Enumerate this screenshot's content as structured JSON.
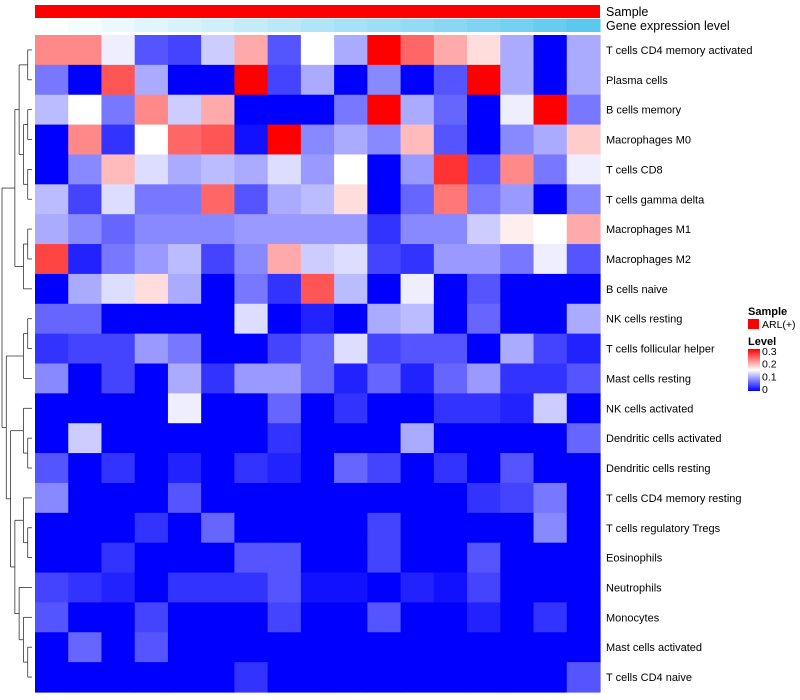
{
  "chart_data": {
    "type": "heatmap",
    "title": "",
    "annotations": [
      {
        "name": "Sample",
        "colors": "#ff0000"
      },
      {
        "name": "Gene expression level",
        "colors_scale": [
          "#ffffff",
          "#5bc8f0"
        ]
      }
    ],
    "rows": [
      "T cells CD4 memory activated",
      "Plasma cells",
      "B cells memory",
      "Macrophages M0",
      "T cells CD8",
      "T cells gamma delta",
      "Macrophages M1",
      "Macrophages M2",
      "B cells naive",
      "NK cells resting",
      "T cells follicular helper",
      "Mast cells resting",
      "NK cells activated",
      "Dendritic cells activated",
      "Dendritic cells resting",
      "T cells CD4 memory resting",
      "T cells regulatory  Tregs",
      "Eosinophils",
      "Neutrophils",
      "Monocytes",
      "Mast cells activated",
      "T cells CD4 naive"
    ],
    "n_columns": 17,
    "values": [
      [
        0.22,
        0.22,
        0.14,
        0.05,
        0.04,
        0.12,
        0.2,
        0.05,
        0.15,
        0.1,
        0.3,
        0.24,
        0.2,
        0.17,
        0.1,
        0.0,
        0.1
      ],
      [
        0.07,
        0.0,
        0.25,
        0.1,
        0.0,
        0.0,
        0.3,
        0.04,
        0.1,
        0.0,
        0.08,
        0.0,
        0.05,
        0.3,
        0.1,
        0.0,
        0.1
      ],
      [
        0.11,
        0.15,
        0.07,
        0.22,
        0.12,
        0.2,
        0.0,
        0.0,
        0.0,
        0.07,
        0.3,
        0.1,
        0.06,
        0.0,
        0.14,
        0.3,
        0.07
      ],
      [
        0.0,
        0.22,
        0.03,
        0.15,
        0.24,
        0.25,
        0.01,
        0.3,
        0.08,
        0.1,
        0.08,
        0.19,
        0.05,
        0.0,
        0.08,
        0.1,
        0.18
      ],
      [
        0.0,
        0.08,
        0.19,
        0.13,
        0.1,
        0.11,
        0.1,
        0.13,
        0.09,
        0.15,
        0.0,
        0.09,
        0.27,
        0.05,
        0.22,
        0.07,
        0.14
      ],
      [
        0.11,
        0.04,
        0.13,
        0.07,
        0.07,
        0.24,
        0.05,
        0.1,
        0.11,
        0.17,
        0.0,
        0.06,
        0.23,
        0.07,
        0.09,
        0.0,
        0.08
      ],
      [
        0.1,
        0.08,
        0.06,
        0.08,
        0.08,
        0.08,
        0.09,
        0.09,
        0.09,
        0.09,
        0.03,
        0.08,
        0.08,
        0.12,
        0.16,
        0.15,
        0.2
      ],
      [
        0.26,
        0.02,
        0.07,
        0.09,
        0.11,
        0.04,
        0.08,
        0.2,
        0.12,
        0.13,
        0.04,
        0.03,
        0.09,
        0.09,
        0.07,
        0.14,
        0.05
      ],
      [
        0.0,
        0.1,
        0.13,
        0.17,
        0.1,
        0.0,
        0.07,
        0.03,
        0.25,
        0.11,
        0.0,
        0.14,
        0.0,
        0.05,
        0.0,
        0.0,
        0.0
      ],
      [
        0.06,
        0.06,
        0.0,
        0.0,
        0.0,
        0.0,
        0.13,
        0.0,
        0.02,
        0.0,
        0.1,
        0.11,
        0.0,
        0.06,
        0.0,
        0.0,
        0.1
      ],
      [
        0.03,
        0.04,
        0.04,
        0.09,
        0.07,
        0.0,
        0.0,
        0.04,
        0.06,
        0.13,
        0.04,
        0.05,
        0.05,
        0.0,
        0.1,
        0.04,
        0.02
      ],
      [
        0.08,
        0.0,
        0.04,
        0.0,
        0.1,
        0.03,
        0.09,
        0.09,
        0.06,
        0.02,
        0.06,
        0.02,
        0.06,
        0.09,
        0.03,
        0.03,
        0.05
      ],
      [
        0.0,
        0.0,
        0.0,
        0.0,
        0.14,
        0.0,
        0.0,
        0.06,
        0.0,
        0.03,
        0.0,
        0.0,
        0.03,
        0.03,
        0.02,
        0.12,
        0.0
      ],
      [
        0.0,
        0.12,
        0.0,
        0.0,
        0.0,
        0.0,
        0.0,
        0.03,
        0.0,
        0.0,
        0.0,
        0.1,
        0.0,
        0.0,
        0.0,
        0.0,
        0.06
      ],
      [
        0.05,
        0.0,
        0.03,
        0.0,
        0.02,
        0.0,
        0.03,
        0.02,
        0.0,
        0.06,
        0.04,
        0.0,
        0.03,
        0.0,
        0.05,
        0.0,
        0.0
      ],
      [
        0.08,
        0.0,
        0.0,
        0.0,
        0.05,
        0.0,
        0.0,
        0.0,
        0.0,
        0.0,
        0.0,
        0.0,
        0.0,
        0.03,
        0.04,
        0.07,
        0.0
      ],
      [
        0.0,
        0.0,
        0.0,
        0.03,
        0.0,
        0.06,
        0.0,
        0.0,
        0.0,
        0.0,
        0.04,
        0.0,
        0.0,
        0.0,
        0.0,
        0.08,
        0.0
      ],
      [
        0.0,
        0.0,
        0.03,
        0.0,
        0.0,
        0.0,
        0.05,
        0.05,
        0.0,
        0.0,
        0.04,
        0.0,
        0.0,
        0.05,
        0.0,
        0.0,
        0.0
      ],
      [
        0.04,
        0.03,
        0.02,
        0.0,
        0.03,
        0.03,
        0.03,
        0.05,
        0.01,
        0.01,
        0.0,
        0.02,
        0.01,
        0.04,
        0.0,
        0.0,
        0.0
      ],
      [
        0.05,
        0.0,
        0.0,
        0.04,
        0.0,
        0.0,
        0.0,
        0.04,
        0.0,
        0.0,
        0.05,
        0.0,
        0.0,
        0.02,
        0.0,
        0.03,
        0.0
      ],
      [
        0.0,
        0.06,
        0.0,
        0.05,
        0.0,
        0.0,
        0.0,
        0.0,
        0.0,
        0.0,
        0.0,
        0.0,
        0.0,
        0.0,
        0.0,
        0.0,
        0.0
      ],
      [
        0.0,
        0.0,
        0.0,
        0.0,
        0.0,
        0.0,
        0.03,
        0.0,
        0.0,
        0.0,
        0.0,
        0.0,
        0.0,
        0.0,
        0.0,
        0.0,
        0.05
      ]
    ],
    "gene_expression_level": [
      0.0,
      0.06,
      0.12,
      0.18,
      0.24,
      0.3,
      0.36,
      0.42,
      0.48,
      0.54,
      0.6,
      0.66,
      0.72,
      0.78,
      0.84,
      0.92,
      1.0
    ],
    "color_scale": {
      "min": 0,
      "max": 0.3,
      "low": "#0000ff",
      "mid": "#ffffff",
      "high": "#ff0000",
      "mid_value": 0.15
    },
    "legend": {
      "sample_title": "Sample",
      "sample_entry": "ARL(+)",
      "level_title": "Level",
      "level_ticks": [
        "0.3",
        "0.2",
        "0.1",
        "0"
      ]
    }
  }
}
